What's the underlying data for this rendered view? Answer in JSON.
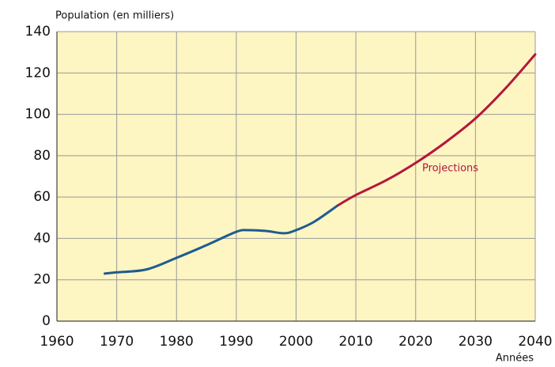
{
  "chart_data": {
    "type": "line",
    "y_label": "Population (en milliers)",
    "x_label": "Années",
    "x": [
      1968,
      1970,
      1975,
      1980,
      1985,
      1990,
      1992,
      1995,
      1998,
      2000,
      2003,
      2007,
      2010,
      2015,
      2020,
      2025,
      2030,
      2035,
      2040
    ],
    "series": [
      {
        "color": "#1f5b8e",
        "values": [
          23,
          23.6,
          25,
          30.6,
          36.7,
          43.2,
          44,
          43.6,
          42.5,
          44,
          48,
          56,
          null,
          null,
          null,
          null,
          null,
          null,
          null
        ]
      },
      {
        "name": "Projections",
        "color": "#b3173c",
        "values": [
          null,
          null,
          null,
          null,
          null,
          null,
          null,
          null,
          null,
          null,
          null,
          56,
          61,
          68,
          76.5,
          86.5,
          98,
          112.5,
          129
        ]
      }
    ],
    "xlim": [
      1960,
      2040
    ],
    "xticks": [
      1960,
      1970,
      1980,
      1990,
      2000,
      2010,
      2020,
      2030,
      2040
    ],
    "ylim": [
      0,
      140
    ],
    "yticks": [
      0,
      20,
      40,
      60,
      80,
      100,
      120,
      140
    ],
    "grid": true,
    "plot_background": "#fdf5c2"
  }
}
